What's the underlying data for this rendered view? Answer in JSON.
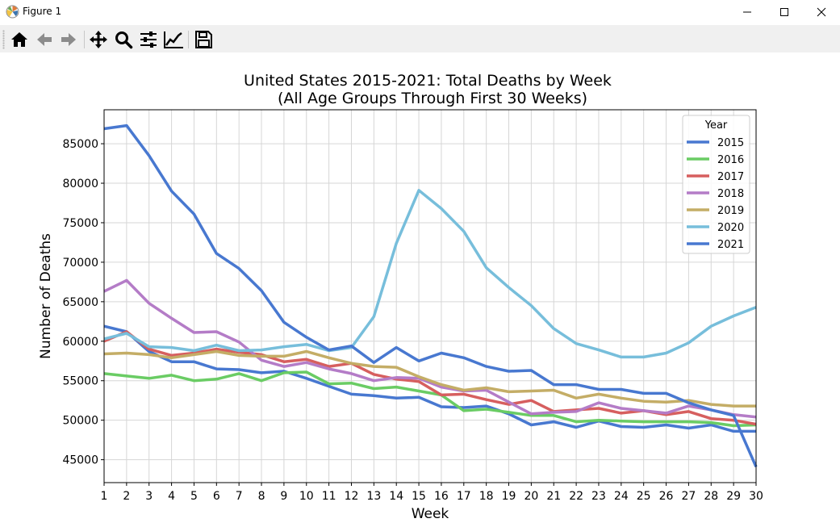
{
  "window": {
    "title": "Figure 1"
  },
  "toolbar": {
    "buttons": [
      {
        "name": "home-button",
        "icon": "home-icon"
      },
      {
        "name": "back-button",
        "icon": "back-arrow-icon"
      },
      {
        "name": "forward-button",
        "icon": "forward-arrow-icon"
      },
      {
        "name": "pan-button",
        "icon": "pan-icon"
      },
      {
        "name": "zoom-button",
        "icon": "zoom-icon"
      },
      {
        "name": "subplots-button",
        "icon": "configure-subplots-icon"
      },
      {
        "name": "customize-button",
        "icon": "edit-axis-icon"
      },
      {
        "name": "save-button",
        "icon": "save-icon"
      }
    ]
  },
  "chart_data": {
    "type": "line",
    "title": "United States 2015-2021: Total Deaths by Week",
    "subtitle": "(All Age Groups Through First 30 Weeks)",
    "xlabel": "Week",
    "ylabel": "Number of Deaths",
    "xlim": [
      1,
      30
    ],
    "ylim": [
      42100,
      89300
    ],
    "xticks": [
      1,
      2,
      3,
      4,
      5,
      6,
      7,
      8,
      9,
      10,
      11,
      12,
      13,
      14,
      15,
      16,
      17,
      18,
      19,
      20,
      21,
      22,
      23,
      24,
      25,
      26,
      27,
      28,
      29,
      30
    ],
    "yticks": [
      45000,
      50000,
      55000,
      60000,
      65000,
      70000,
      75000,
      80000,
      85000
    ],
    "grid": true,
    "legend": {
      "title": "Year",
      "placement": "top-right"
    },
    "series": [
      {
        "name": "2015",
        "color": "#4878d0",
        "values": [
          61900,
          61200,
          58700,
          57400,
          57400,
          56500,
          56400,
          56000,
          56200,
          55300,
          54300,
          53300,
          53100,
          52800,
          52900,
          51700,
          51600,
          51800,
          50800,
          49400,
          49800,
          49100,
          49900,
          49200,
          49100,
          49400,
          49000,
          49400,
          48600,
          48600
        ]
      },
      {
        "name": "2016",
        "color": "#6acc64",
        "values": [
          55900,
          55600,
          55300,
          55700,
          55000,
          55200,
          55900,
          55000,
          56000,
          56100,
          54600,
          54700,
          54000,
          54200,
          53700,
          53200,
          51200,
          51400,
          51000,
          50600,
          50600,
          49800,
          50000,
          49900,
          49800,
          49800,
          49800,
          49700,
          49300,
          49400
        ]
      },
      {
        "name": "2017",
        "color": "#d65f5f",
        "values": [
          60000,
          61200,
          59000,
          58200,
          58500,
          59000,
          58600,
          58300,
          57400,
          57700,
          56800,
          57200,
          55800,
          55200,
          54900,
          53200,
          53300,
          52600,
          52000,
          52500,
          51100,
          51300,
          51500,
          50900,
          51200,
          50700,
          51100,
          50200,
          50000,
          49500
        ]
      },
      {
        "name": "2018",
        "color": "#b47cc7",
        "values": [
          66300,
          67700,
          64800,
          62900,
          61100,
          61200,
          59900,
          57600,
          56800,
          57300,
          56500,
          55900,
          55000,
          55400,
          55300,
          54200,
          53700,
          53800,
          52300,
          50800,
          51000,
          51100,
          52200,
          51500,
          51200,
          50900,
          51800,
          51300,
          50700,
          50400
        ]
      },
      {
        "name": "2019",
        "color": "#c4ad66",
        "values": [
          58400,
          58500,
          58300,
          57900,
          58300,
          58700,
          58200,
          58100,
          58100,
          58700,
          57900,
          57200,
          56800,
          56700,
          55500,
          54500,
          53800,
          54100,
          53600,
          53700,
          53800,
          52800,
          53300,
          52800,
          52400,
          52300,
          52500,
          52000,
          51800,
          51800
        ]
      },
      {
        "name": "2020",
        "color": "#77bedb",
        "values": [
          60300,
          61000,
          59300,
          59200,
          58800,
          59500,
          58800,
          58900,
          59300,
          59600,
          58800,
          59200,
          63100,
          72400,
          79100,
          76800,
          73900,
          69300,
          66800,
          64500,
          61600,
          59700,
          58900,
          58000,
          58000,
          58500,
          59800,
          61900,
          63200,
          64300
        ]
      },
      {
        "name": "2021",
        "color": "#4878d0",
        "values": [
          86900,
          87300,
          83500,
          79000,
          76100,
          71100,
          69200,
          66400,
          62400,
          60500,
          58900,
          59400,
          57300,
          59200,
          57500,
          58500,
          57900,
          56800,
          56200,
          56300,
          54500,
          54500,
          53900,
          53900,
          53400,
          53400,
          52200,
          51300,
          50600,
          44100
        ]
      }
    ]
  }
}
